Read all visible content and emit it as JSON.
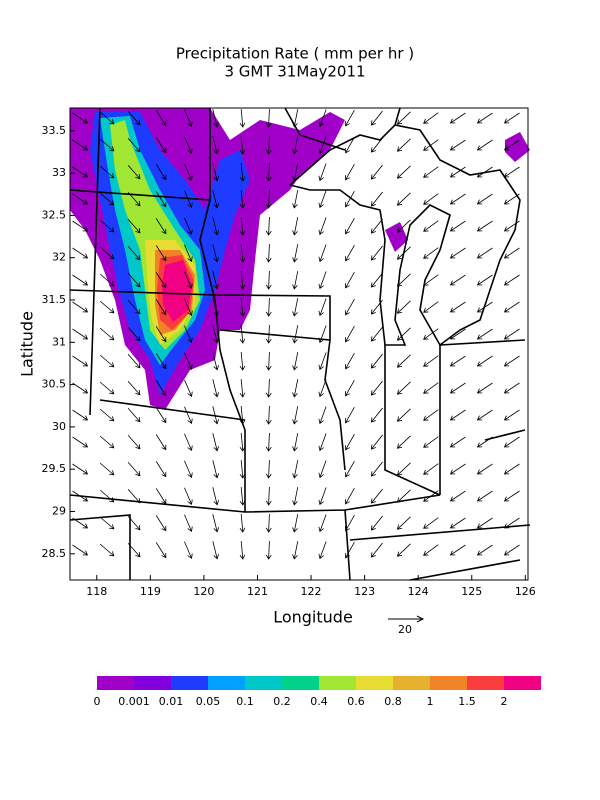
{
  "title": "Precipitation Rate ( mm per hr )",
  "subtitle": "3 GMT 31May2011",
  "x_label": "Longitude",
  "y_label": "Latitude",
  "xlim": [
    117.5,
    126.05
  ],
  "ylim": [
    28.19,
    33.77
  ],
  "xticks": [
    118,
    119,
    120,
    121,
    122,
    123,
    124,
    125,
    126
  ],
  "yticks": [
    28.5,
    29,
    29.5,
    30,
    30.5,
    31,
    31.5,
    32,
    32.5,
    33,
    33.5
  ],
  "colorbar": {
    "labels": [
      0,
      0.001,
      0.01,
      0.05,
      0.1,
      0.2,
      0.4,
      0.6,
      0.8,
      1,
      1.5,
      2
    ],
    "colors": [
      "#a000c8",
      "#8200dc",
      "#1e3cff",
      "#00a0ff",
      "#00c8c8",
      "#00d28c",
      "#a0e632",
      "#e6dc32",
      "#e6af2d",
      "#f08228",
      "#fa3c3c",
      "#f00082"
    ]
  },
  "vector_reference": 20
}
